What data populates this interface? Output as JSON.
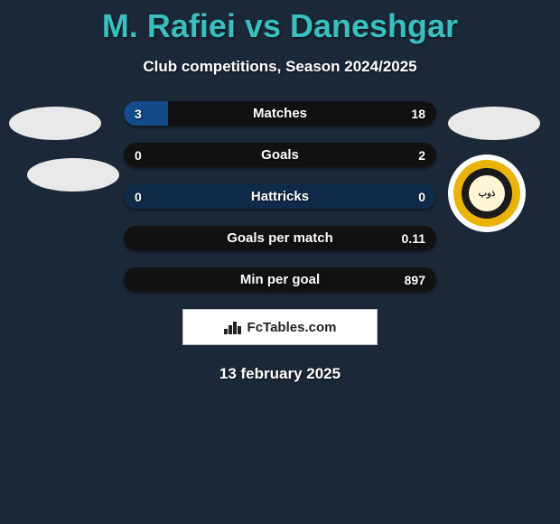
{
  "background_color": "#1b2838",
  "title": "M. Rafiei vs Daneshgar",
  "title_color": "#39bfbf",
  "subtitle": "Club competitions, Season 2024/2025",
  "left_player": {
    "photo_placeholders": 2,
    "placeholder_color": "#e9e9e9"
  },
  "right_player": {
    "photo_placeholders": 1,
    "placeholder_color": "#e9e9e9",
    "club_badge": {
      "outer": "#ffffff",
      "ring": "#eab308",
      "inner_dark": "#1a1a1a",
      "inner_light": "#fff6d6",
      "text": "ذوب"
    }
  },
  "bar_colors": {
    "player1": "#134b8b",
    "player2": "#111111",
    "neutral": "#102b4a"
  },
  "bars": [
    {
      "label": "Matches",
      "left": "3",
      "right": "18",
      "leftPct": 14.3,
      "rightPct": 85.7
    },
    {
      "label": "Goals",
      "left": "0",
      "right": "2",
      "leftPct": 0,
      "rightPct": 100
    },
    {
      "label": "Hattricks",
      "left": "0",
      "right": "0",
      "leftPct": 0,
      "rightPct": 0
    },
    {
      "label": "Goals per match",
      "left": "",
      "right": "0.11",
      "leftPct": 0,
      "rightPct": 100
    },
    {
      "label": "Min per goal",
      "left": "",
      "right": "897",
      "leftPct": 0,
      "rightPct": 100
    }
  ],
  "logo_text": "FcTables.com",
  "date": "13 february 2025"
}
